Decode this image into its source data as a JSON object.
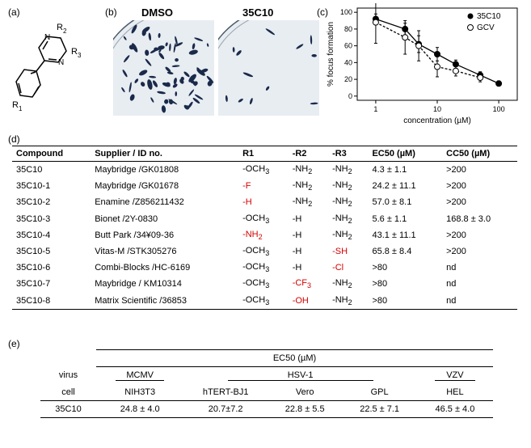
{
  "labels": {
    "a": "(a)",
    "b": "(b)",
    "c": "(c)",
    "d": "(d)",
    "e": "(e)"
  },
  "panel_a": {
    "r1": "R₁",
    "r2": "R₂",
    "r3": "R₃",
    "ring_color": "#000000",
    "n_atoms": [
      "N",
      "N"
    ]
  },
  "panel_b": {
    "dmso_label": "DMSO",
    "cmpd_label": "35C10",
    "dish_bg": "#e8edf2",
    "dish_border": "#4a5a6a",
    "foci_color": "#1a2a4a",
    "dmso_foci_count": 70,
    "cmpd_foci_count": 12
  },
  "panel_c": {
    "type": "scatter-line",
    "ylabel": "% focus formation",
    "xlabel": "concentration (µM)",
    "legend": [
      {
        "label": "35C10",
        "marker": "filled-circle",
        "color": "#000000"
      },
      {
        "label": "GCV",
        "marker": "open-circle",
        "color": "#000000"
      }
    ],
    "xscale": "log",
    "xlim": [
      0.5,
      200
    ],
    "xticks": [
      1,
      10,
      100
    ],
    "ylim": [
      -5,
      105
    ],
    "yticks": [
      0,
      20,
      40,
      60,
      80,
      100
    ],
    "series_35C10": {
      "x": [
        1,
        3,
        5,
        10,
        20,
        50,
        100
      ],
      "y": [
        92,
        80,
        62,
        50,
        38,
        25,
        15
      ],
      "err": [
        6,
        7,
        10,
        8,
        5,
        4,
        3
      ]
    },
    "series_GCV": {
      "x": [
        1,
        3,
        5,
        10,
        20,
        50
      ],
      "y": [
        88,
        70,
        60,
        35,
        30,
        22
      ],
      "err": [
        25,
        20,
        18,
        12,
        6,
        5
      ]
    },
    "axis_color": "#000000",
    "font_size": 10,
    "background_color": "#ffffff"
  },
  "panel_d": {
    "headers": [
      "Compound",
      "Supplier / ID no.",
      "R1",
      "-R2",
      "-R3",
      "EC50 (µM)",
      "CC50 (µM)"
    ],
    "rows": [
      {
        "c": "35C10",
        "s": "Maybridge /GK01808",
        "r1": {
          "t": "-OCH",
          "sub": "3"
        },
        "r2": {
          "t": "-NH",
          "sub": "2"
        },
        "r3": {
          "t": "-NH",
          "sub": "2"
        },
        "ec": "4.3 ± 1.1",
        "cc": ">200"
      },
      {
        "c": "35C10-1",
        "s": "Maybridge /GK01678",
        "r1": {
          "t": "-F",
          "red": true
        },
        "r2": {
          "t": "-NH",
          "sub": "2"
        },
        "r3": {
          "t": "-NH",
          "sub": "2"
        },
        "ec": "24.2 ± 11.1",
        "cc": ">200"
      },
      {
        "c": "35C10-2",
        "s": "Enamine /Z856211432",
        "r1": {
          "t": "-H",
          "red": true
        },
        "r2": {
          "t": "-NH",
          "sub": "2"
        },
        "r3": {
          "t": "-NH",
          "sub": "2"
        },
        "ec": "57.0 ± 8.1",
        "cc": ">200"
      },
      {
        "c": "35C10-3",
        "s": "Bionet /2Y-0830",
        "r1": {
          "t": "-OCH",
          "sub": "3"
        },
        "r2": {
          "t": "-H"
        },
        "r3": {
          "t": "-NH",
          "sub": "2"
        },
        "ec": "5.6 ± 1.1",
        "cc": "168.8 ± 3.0"
      },
      {
        "c": "35C10-4",
        "s": "Butt Park /34¥09-36",
        "r1": {
          "t": "-NH",
          "sub": "2",
          "red": true
        },
        "r2": {
          "t": "-H"
        },
        "r3": {
          "t": "-NH",
          "sub": "2"
        },
        "ec": "43.1 ± 11.1",
        "cc": ">200"
      },
      {
        "c": "35C10-5",
        "s": "Vitas-M /STK305276",
        "r1": {
          "t": "-OCH",
          "sub": "3"
        },
        "r2": {
          "t": "-H"
        },
        "r3": {
          "t": "-SH",
          "red": true
        },
        "ec": "65.8 ± 8.4",
        "cc": ">200"
      },
      {
        "c": "35C10-6",
        "s": "Combi-Blocks /HC-6169",
        "r1": {
          "t": "-OCH",
          "sub": "3"
        },
        "r2": {
          "t": "-H"
        },
        "r3": {
          "t": "-Cl",
          "red": true
        },
        "ec": ">80",
        "cc": "nd"
      },
      {
        "c": "35C10-7",
        "s": "Maybridge / KM10314",
        "r1": {
          "t": "-OCH",
          "sub": "3"
        },
        "r2": {
          "t": "-CF",
          "sub": "3",
          "red": true
        },
        "r3": {
          "t": "-NH",
          "sub": "2"
        },
        "ec": ">80",
        "cc": "nd"
      },
      {
        "c": "35C10-8",
        "s": "Matrix Scientific /36853",
        "r1": {
          "t": "-OCH",
          "sub": "3"
        },
        "r2": {
          "t": "-OH",
          "red": true
        },
        "r3": {
          "t": "-NH",
          "sub": "2"
        },
        "ec": ">80",
        "cc": "nd"
      }
    ],
    "red_color": "#d40000"
  },
  "panel_e": {
    "title": "EC50 (µM)",
    "row_labels": {
      "virus": "virus",
      "cell": "cell"
    },
    "viruses": [
      "MCMV",
      "HSV-1",
      "VZV"
    ],
    "hsv_span": 3,
    "cells": [
      "NIH3T3",
      "hTERT-BJ1",
      "Vero",
      "GPL",
      "HEL"
    ],
    "compound": "35C10",
    "values": [
      "24.8 ± 4.0",
      "20.7±7.2",
      "22.8 ± 5.5",
      "22.5 ± 7.1",
      "46.5 ± 4.0"
    ]
  }
}
